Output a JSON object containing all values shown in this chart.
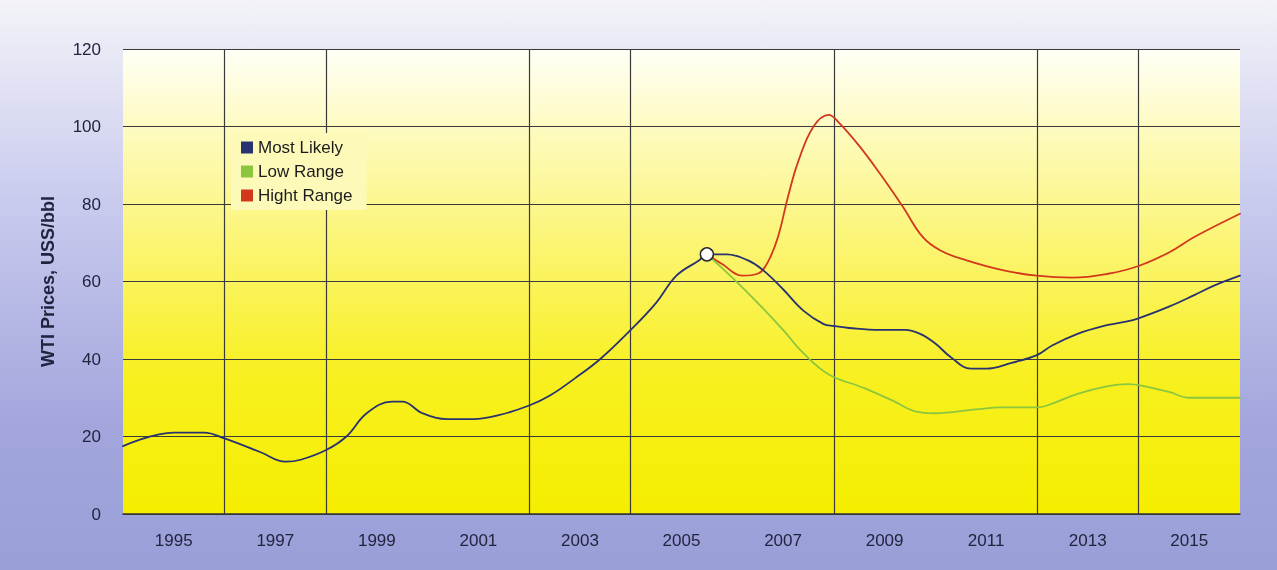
{
  "chart_data": {
    "type": "line",
    "ylabel": "WTI Prices, USS/bbl",
    "xlim": [
      1994,
      2016
    ],
    "xticks": [
      1995,
      {
        "value": 1996,
        "label": null
      },
      1997,
      {
        "value": 1998,
        "label": null
      },
      1999,
      2001,
      {
        "value": 2002,
        "label": null
      },
      2003,
      {
        "value": 2004,
        "label": null
      },
      2005,
      2007,
      {
        "value": 2008,
        "label": null
      },
      2009,
      2011,
      {
        "value": 2012,
        "label": null
      },
      2013,
      {
        "value": 2014,
        "label": null
      },
      2015
    ],
    "ylim": [
      0,
      120
    ],
    "yticks": [
      0,
      20,
      40,
      60,
      80,
      100,
      120
    ],
    "grid": true,
    "legend": "top left",
    "marker": "none",
    "line_style": "solid",
    "series": [
      {
        "name": "Most Likely",
        "color": "#283270",
        "x": [
          1994.0,
          1995.0,
          1995.6,
          1996.0,
          1996.7,
          1997.2,
          1997.5,
          1998.0,
          1998.4,
          1998.8,
          1999.3,
          1999.5,
          1999.9,
          2000.4,
          2000.9,
          2001.4,
          2002.0,
          2002.4,
          2002.9,
          2003.4,
          2004.0,
          2004.5,
          2004.9,
          2005.35,
          2005.5,
          2005.9,
          2006.3,
          2006.6,
          2007.0,
          2007.4,
          2007.8,
          2008.0,
          2008.3,
          2008.9,
          2009.4,
          2009.7,
          2010.0,
          2010.3,
          2010.7,
          2011.0,
          2011.5,
          2012.0,
          2012.3,
          2012.8,
          2013.3,
          2013.7,
          2014.0,
          2014.6,
          2015.1,
          2015.5,
          2016.0
        ],
        "values": [
          17.5,
          21,
          21,
          19.5,
          16,
          13.5,
          14,
          16.5,
          20,
          26,
          29,
          29,
          26,
          24.5,
          24.5,
          25.5,
          28,
          30.5,
          35,
          40,
          47.5,
          54.5,
          61.5,
          65.5,
          67,
          67,
          65.5,
          63,
          58,
          52.5,
          49,
          48.5,
          48,
          47.5,
          47.5,
          46.5,
          44,
          40.5,
          37.5,
          37.5,
          39,
          41,
          43.5,
          46.5,
          48.5,
          49.5,
          50.5,
          53.5,
          56.5,
          59,
          61.5
        ]
      },
      {
        "name": "Low Range",
        "color": "#8cc63f",
        "x": [
          2005.5,
          2006.0,
          2006.5,
          2007.0,
          2007.4,
          2007.9,
          2008.6,
          2009.2,
          2009.6,
          2010.0,
          2010.8,
          2011.3,
          2012.0,
          2012.2,
          2012.8,
          2013.4,
          2013.8,
          2014.1,
          2014.6,
          2015.0,
          2016.0
        ],
        "values": [
          67,
          61,
          54.5,
          47.5,
          41.5,
          36,
          32.5,
          29,
          26.5,
          26,
          27,
          27.5,
          27.5,
          28,
          31,
          33,
          33.5,
          33,
          31.5,
          30,
          30
        ]
      },
      {
        "name": "Hight Range",
        "color": "#d2381c",
        "x": [
          2005.5,
          2005.8,
          2006.2,
          2006.5,
          2006.7,
          2006.9,
          2007.1,
          2007.3,
          2007.6,
          2007.9,
          2008.1,
          2008.5,
          2008.9,
          2009.35,
          2009.75,
          2010.1,
          2010.6,
          2011.3,
          2012.0,
          2012.7,
          2013.4,
          2014.0,
          2014.6,
          2015.1,
          2016.0
        ],
        "values": [
          67,
          64.5,
          61.5,
          62,
          65,
          71.5,
          82,
          91,
          100,
          103,
          101,
          95,
          88,
          79.5,
          71.5,
          68,
          65.5,
          63,
          61.5,
          61,
          62,
          64,
          67.5,
          71.5,
          77.5
        ]
      },
      {
        "type": "scatter",
        "color": "#ffffff",
        "marker": "circle",
        "x": [
          2005.5
        ],
        "values": [
          67
        ]
      }
    ]
  }
}
